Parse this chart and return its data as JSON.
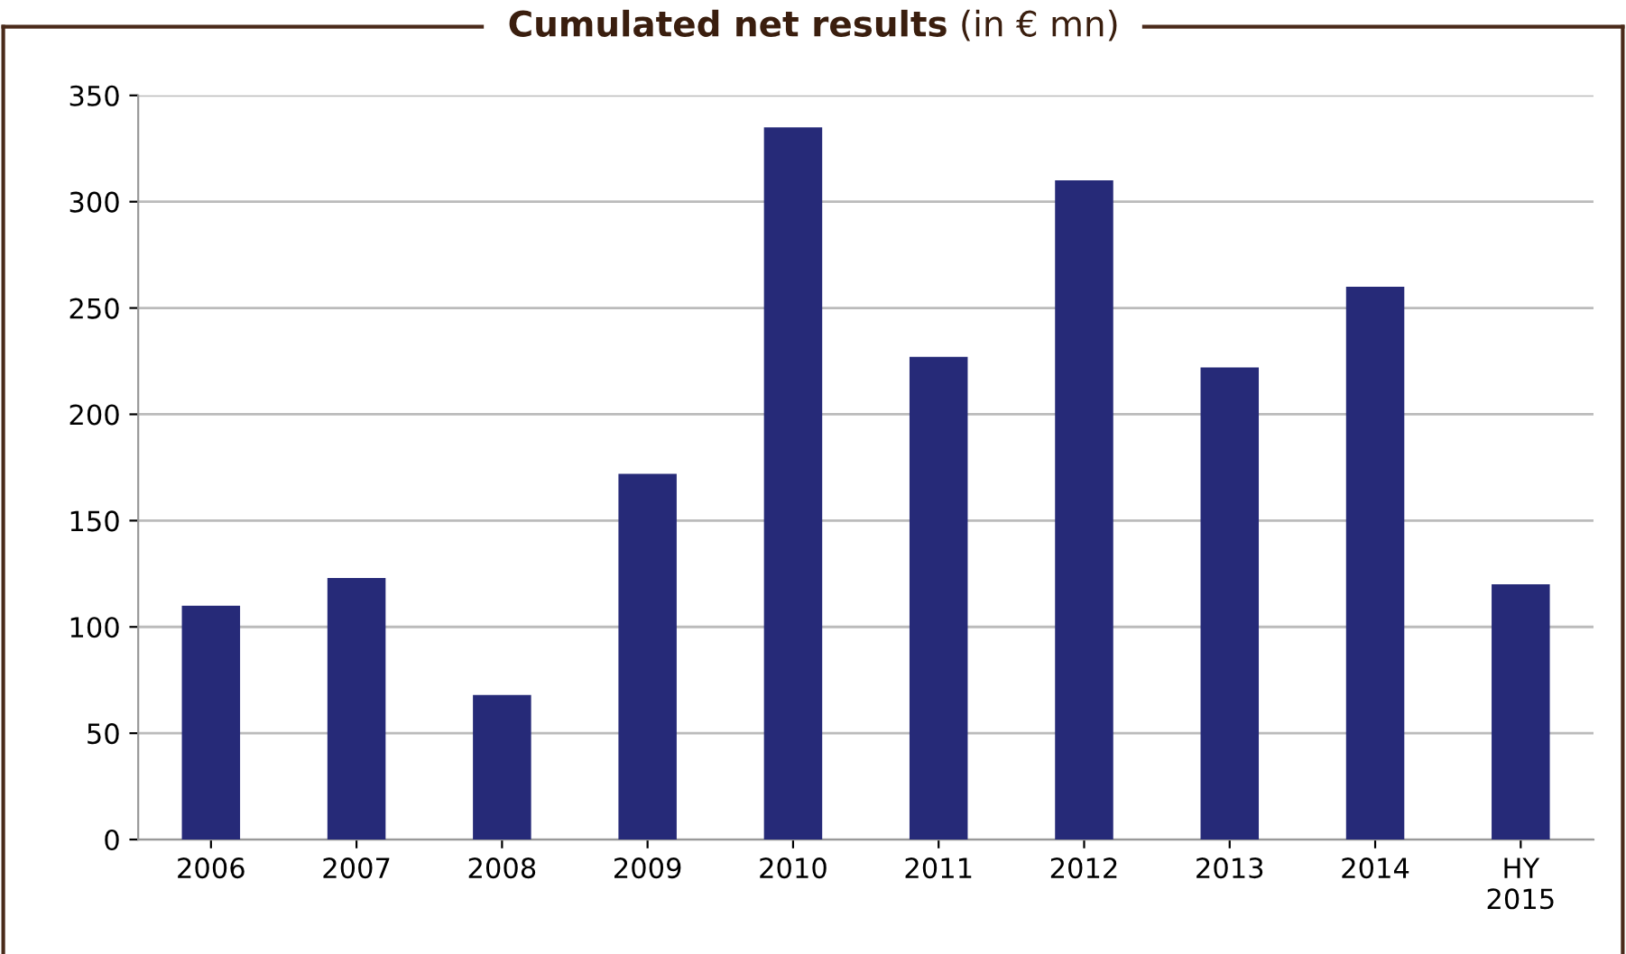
{
  "chart_data": {
    "type": "bar",
    "title": "Cumulated net results",
    "subtitle": "(in € mn)",
    "categories": [
      "2006",
      "2007",
      "2008",
      "2009",
      "2010",
      "2011",
      "2012",
      "2013",
      "2014",
      "HY\n2015"
    ],
    "values": [
      110,
      123,
      68,
      172,
      335,
      227,
      310,
      222,
      260,
      120
    ],
    "color": "#262a78",
    "ylim": [
      0,
      350
    ],
    "yticks": [
      0,
      50,
      100,
      150,
      200,
      250,
      300,
      350
    ],
    "grid": "y",
    "legend": false
  }
}
